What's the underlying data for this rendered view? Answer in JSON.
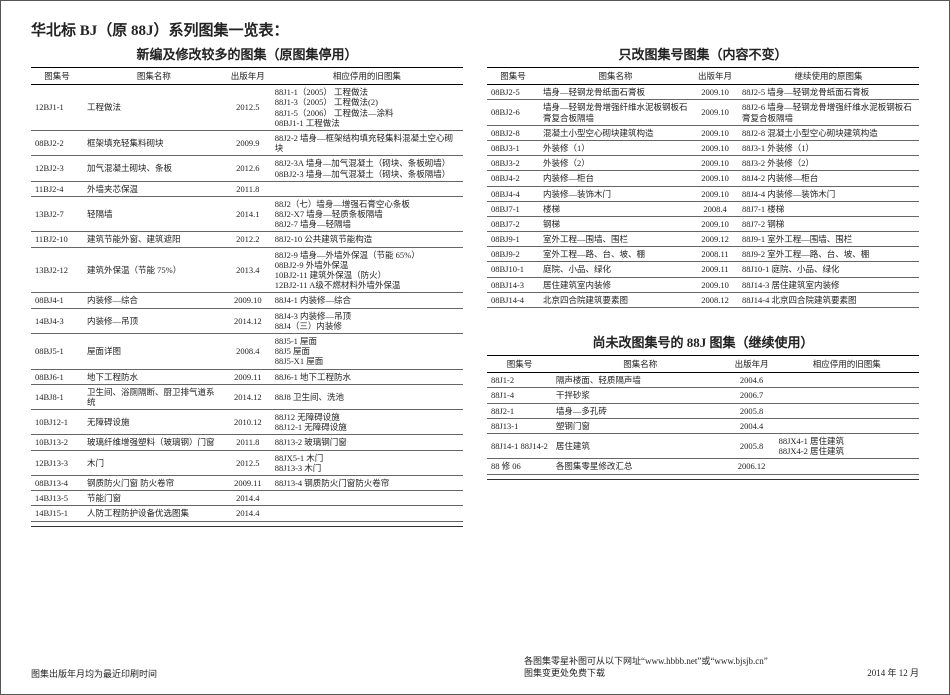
{
  "mainTitle": "华北标 BJ（原 88J）系列图集一览表：",
  "leftSection": {
    "title": "新编及修改较多的图集（原图集停用）",
    "headers": [
      "图集号",
      "图集名称",
      "出版年月",
      "相应停用的旧图集"
    ],
    "rows": [
      {
        "code": "12BJ1-1",
        "name": "工程做法",
        "year": "2012.5",
        "old": "88J1-1（2005） 工程做法\n88J1-3（2005） 工程做法(2)\n88J1-5（2006） 工程做法—涂料\n08BJ1-1          工程做法"
      },
      {
        "code": "08BJ2-2",
        "name": "框架填充轻集料砌块",
        "year": "2009.9",
        "old": "88J2-2 墙身—框架结构填充轻集料混凝土空心砌块"
      },
      {
        "code": "12BJ2-3",
        "name": "加气混凝土砌块、条板",
        "year": "2012.6",
        "old": "88J2-3A 墙身—加气混凝土（砌块、条板砌墙）\n08BJ2-3 墙身—加气混凝土（砌块、条板隔墙）"
      },
      {
        "code": "11BJ2-4",
        "name": "外墙夹芯保温",
        "year": "2011.8",
        "old": ""
      },
      {
        "code": "13BJ2-7",
        "name": "轻隔墙",
        "year": "2014.1",
        "old": "88J2（七）墙身—增强石膏空心条板\n88J2-X7 墙身—轻质条板隔墙\n88J2-7 墙身—轻隔墙"
      },
      {
        "code": "11BJ2-10",
        "name": "建筑节能外窗、建筑遮阳",
        "year": "2012.2",
        "old": "88J2-10 公共建筑节能构造"
      },
      {
        "code": "13BJ2-12",
        "name": "建筑外保温（节能 75%）",
        "year": "2013.4",
        "old": "88J2-9   墙身—外墙外保温（节能 65%）\n08BJ2-9  外墙外保温\n10BJ2-11 建筑外保温（防火）\n12BJ2-11 A级不燃材料外墙外保温"
      },
      {
        "code": "08BJ4-1",
        "name": "内装修—综合",
        "year": "2009.10",
        "old": "88J4-1 内装修—综合"
      },
      {
        "code": "14BJ4-3",
        "name": "内装修—吊顶",
        "year": "2014.12",
        "old": "88J4-3 内装修—吊顶\n88J4（三）内装修"
      },
      {
        "code": "08BJ5-1",
        "name": "屋面详图",
        "year": "2008.4",
        "old": "88J5-1   屋面\n88J5      屋面\n88J5-X1 屋面"
      },
      {
        "code": "08BJ6-1",
        "name": "地下工程防水",
        "year": "2009.11",
        "old": "88J6-1 地下工程防水"
      },
      {
        "code": "14BJ8-1",
        "name": "卫生间、浴厕隔断、厨卫排气道系统",
        "year": "2014.12",
        "old": "88J8   卫生间、洗池"
      },
      {
        "code": "10BJ12-1",
        "name": "无障碍设施",
        "year": "2010.12",
        "old": "88J12 无障碍设施\n88J12-1 无障碍设施"
      },
      {
        "code": "10BJ13-2",
        "name": "玻璃纤维增强塑料（玻璃钢）门窗",
        "year": "2011.8",
        "old": "88J13-2 玻璃钢门窗"
      },
      {
        "code": "12BJ13-3",
        "name": "木门",
        "year": "2012.5",
        "old": "88JX5-1 木门\n88J13-3 木门"
      },
      {
        "code": "08BJ13-4",
        "name": "钢质防火门窗  防火卷帘",
        "year": "2009.11",
        "old": "88J13-4 钢质防火门窗防火卷帘"
      },
      {
        "code": "14BJ13-5",
        "name": "节能门窗",
        "year": "2014.4",
        "old": ""
      },
      {
        "code": "14BJ15-1",
        "name": "人防工程防护设备优选图集",
        "year": "2014.4",
        "old": ""
      }
    ]
  },
  "rightSectionA": {
    "title": "只改图集号图集（内容不变）",
    "headers": [
      "图集号",
      "图集名称",
      "出版年月",
      "继续使用的原图集"
    ],
    "rows": [
      {
        "code": "08BJ2-5",
        "name": "墙身—轻钢龙骨纸面石膏板",
        "year": "2009.10",
        "old": "88J2-5 墙身—轻钢龙骨纸面石膏板"
      },
      {
        "code": "08BJ2-6",
        "name": "墙身—轻钢龙骨增强纤维水泥板钢板石膏复合板隔墙",
        "year": "2009.10",
        "old": "88J2-6 墙身—轻钢龙骨增强纤维水泥板钢板石膏复合板隔墙"
      },
      {
        "code": "08BJ2-8",
        "name": "混凝土小型空心砌块建筑构造",
        "year": "2009.10",
        "old": "88J2-8 混凝土小型空心砌块建筑构造"
      },
      {
        "code": "08BJ3-1",
        "name": "外装修（1）",
        "year": "2009.10",
        "old": "88J3-1 外装修（1）"
      },
      {
        "code": "08BJ3-2",
        "name": "外装修（2）",
        "year": "2009.10",
        "old": "88J3-2 外装修（2）"
      },
      {
        "code": "08BJ4-2",
        "name": "内装修—柜台",
        "year": "2009.10",
        "old": "88J4-2 内装修—柜台"
      },
      {
        "code": "08BJ4-4",
        "name": "内装修—装饰木门",
        "year": "2009.10",
        "old": "88J4-4 内装修—装饰木门"
      },
      {
        "code": "08BJ7-1",
        "name": "楼梯",
        "year": "2008.4",
        "old": "88J7-1 楼梯"
      },
      {
        "code": "08BJ7-2",
        "name": "钢梯",
        "year": "2009.10",
        "old": "88J7-2 钢梯"
      },
      {
        "code": "08BJ9-1",
        "name": "室外工程—围墙、围栏",
        "year": "2009.12",
        "old": "88J9-1 室外工程—围墙、围栏"
      },
      {
        "code": "08BJ9-2",
        "name": "室外工程—路、台、坡、棚",
        "year": "2008.11",
        "old": "88J9-2 室外工程—路、台、坡、棚"
      },
      {
        "code": "08BJ10-1",
        "name": "庭院、小品、绿化",
        "year": "2009.11",
        "old": "88J10-1 庭院、小品、绿化"
      },
      {
        "code": "08BJ14-3",
        "name": "居住建筑室内装修",
        "year": "2009.10",
        "old": "88J14-3 居住建筑室内装修"
      },
      {
        "code": "08BJ14-4",
        "name": "北京四合院建筑要素图",
        "year": "2008.12",
        "old": "88J14-4 北京四合院建筑要素图"
      }
    ]
  },
  "rightSectionB": {
    "title": "尚未改图集号的 88J 图集（继续使用）",
    "headers": [
      "图集号",
      "图集名称",
      "出版年月",
      "相应停用的旧图集"
    ],
    "rows": [
      {
        "code": "88J1-2",
        "name": "隔声楼面、轻质隔声墙",
        "year": "2004.6",
        "old": ""
      },
      {
        "code": "88J1-4",
        "name": "干拌砂浆",
        "year": "2006.7",
        "old": ""
      },
      {
        "code": "88J2-1",
        "name": "墙身—多孔砖",
        "year": "2005.8",
        "old": ""
      },
      {
        "code": "88J13-1",
        "name": "塑钢门窗",
        "year": "2004.4",
        "old": ""
      },
      {
        "code": "88J14-1\n88J14-2",
        "name": "居住建筑",
        "year": "2005.8",
        "old": "88JX4-1  居住建筑\n88JX4-2  居住建筑"
      },
      {
        "code": "88 修 06",
        "name": "各图集零星修改汇总",
        "year": "2006.12",
        "old": ""
      }
    ]
  },
  "footLeft": "图集出版年月均为最近印刷时间",
  "footRight1": "各图集零星补图可从以下网址“www.hbbb.net”或“www.bjsjb.cn”",
  "footRight2": "图集变更处免费下载",
  "footDate": "2014 年 12 月"
}
